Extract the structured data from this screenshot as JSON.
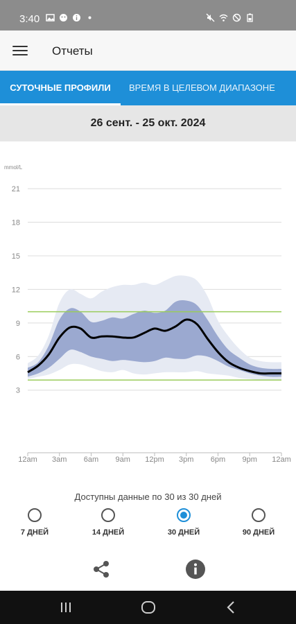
{
  "status": {
    "time": "3:40",
    "icons_left": [
      "image-icon",
      "face-icon",
      "info-icon",
      "dot-icon"
    ],
    "icons_right": [
      "mute-icon",
      "wifi-icon",
      "dnd-icon",
      "battery-icon"
    ]
  },
  "appbar": {
    "title": "Отчеты"
  },
  "tabs": [
    {
      "label": "СУТОЧНЫЕ ПРОФИЛИ",
      "active": true
    },
    {
      "label": "ВРЕМЯ В ЦЕЛЕВОМ ДИАПАЗОНЕ",
      "active": false
    }
  ],
  "date_range": "26 сент. - 25 окт. 2024",
  "colors": {
    "accent": "#1e8fd8",
    "band_outer": "#e6eaf3",
    "band_inner": "#9ba9d0",
    "median": "#000000",
    "target": "#9acc5a"
  },
  "chart_data": {
    "type": "area",
    "ylabel": "mmol/L",
    "y_ticks": [
      3,
      6,
      9,
      12,
      15,
      18,
      21
    ],
    "x_ticks": [
      "12am",
      "3am",
      "6am",
      "9am",
      "12pm",
      "3pm",
      "6pm",
      "9pm",
      "12am"
    ],
    "ylim": [
      1,
      21.5
    ],
    "xlim": [
      0,
      24
    ],
    "target_range": [
      3.9,
      10
    ],
    "x_hours": [
      0,
      1,
      2,
      3,
      4,
      5,
      6,
      7,
      8,
      9,
      10,
      11,
      12,
      13,
      14,
      15,
      16,
      17,
      18,
      19,
      20,
      21,
      22,
      23,
      24
    ],
    "series": [
      {
        "name": "p5",
        "values": [
          4.0,
          4.2,
          4.4,
          4.8,
          5.3,
          5.3,
          5.0,
          4.7,
          4.6,
          4.8,
          4.5,
          4.4,
          4.5,
          4.6,
          4.6,
          4.6,
          4.7,
          4.5,
          4.4,
          4.3,
          4.1,
          4.0,
          3.9,
          3.9,
          3.9
        ]
      },
      {
        "name": "p25",
        "values": [
          4.2,
          4.5,
          5.0,
          5.8,
          6.6,
          6.4,
          6.0,
          5.8,
          5.6,
          5.7,
          5.6,
          5.5,
          5.6,
          5.9,
          5.8,
          5.8,
          6.1,
          6.0,
          5.6,
          5.1,
          4.8,
          4.5,
          4.3,
          4.2,
          4.2
        ]
      },
      {
        "name": "median",
        "values": [
          4.6,
          5.2,
          6.2,
          7.7,
          8.6,
          8.5,
          7.7,
          7.8,
          7.8,
          7.7,
          7.7,
          8.1,
          8.5,
          8.3,
          8.7,
          9.3,
          8.9,
          7.6,
          6.4,
          5.5,
          5.0,
          4.7,
          4.5,
          4.5,
          4.5
        ]
      },
      {
        "name": "p75",
        "values": [
          5.0,
          5.5,
          7.0,
          9.3,
          10.3,
          10.0,
          9.1,
          9.2,
          9.5,
          9.4,
          9.8,
          10.1,
          9.9,
          10.1,
          10.9,
          11.0,
          10.6,
          9.3,
          7.8,
          6.6,
          5.9,
          5.3,
          5.0,
          4.9,
          4.9
        ]
      },
      {
        "name": "p95",
        "values": [
          5.4,
          6.1,
          7.9,
          10.8,
          12.0,
          11.6,
          11.2,
          11.8,
          12.2,
          12.4,
          12.4,
          12.6,
          12.4,
          12.8,
          13.2,
          13.2,
          12.8,
          11.4,
          9.2,
          7.8,
          6.7,
          5.9,
          5.6,
          5.5,
          5.5
        ]
      }
    ]
  },
  "availability_text": "Доступны данные по 30 из 30 дней",
  "range_options": [
    {
      "label": "7 ДНЕЙ",
      "selected": false
    },
    {
      "label": "14 ДНЕЙ",
      "selected": false
    },
    {
      "label": "30 ДНЕЙ",
      "selected": true
    },
    {
      "label": "90 ДНЕЙ",
      "selected": false
    }
  ],
  "actions": [
    "share-icon",
    "info-icon"
  ],
  "navbar": [
    "recents-icon",
    "home-icon",
    "back-icon"
  ]
}
